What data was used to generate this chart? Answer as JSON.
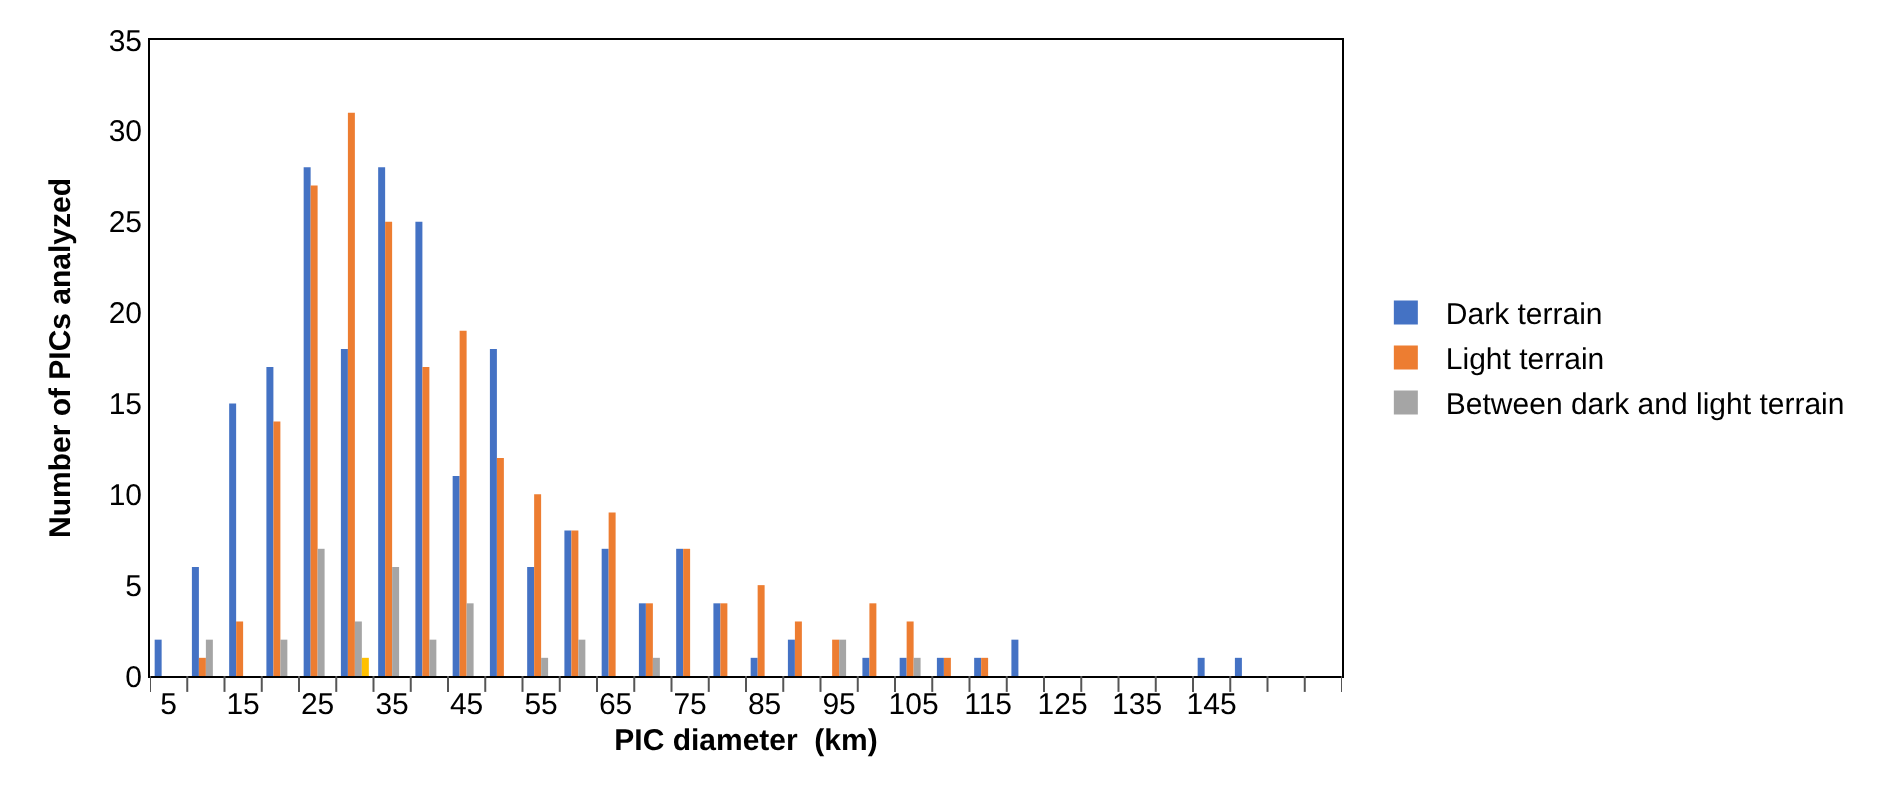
{
  "chart_data": {
    "type": "bar",
    "xlabel": "PIC diameter  (km)",
    "ylabel": "Number of PICs analyzed",
    "categories": [
      "5",
      null,
      "15",
      null,
      "25",
      null,
      "35",
      null,
      "45",
      null,
      "55",
      null,
      "65",
      null,
      "75",
      null,
      "85",
      null,
      "95",
      null,
      "105",
      null,
      "115",
      null,
      "125",
      null,
      "135",
      null,
      "145",
      null,
      null,
      null
    ],
    "series": [
      {
        "name": "Dark terrain",
        "color": "#4472c4",
        "values": [
          2,
          6,
          15,
          17,
          28,
          18,
          28,
          25,
          11,
          18,
          6,
          8,
          7,
          4,
          7,
          4,
          1,
          2,
          0,
          1,
          1,
          1,
          1,
          2,
          0,
          0,
          0,
          0,
          1,
          1,
          0,
          0
        ]
      },
      {
        "name": "Light terrain",
        "color": "#ed7d31",
        "values": [
          0,
          1,
          3,
          14,
          27,
          31,
          25,
          17,
          19,
          12,
          10,
          8,
          9,
          4,
          7,
          4,
          5,
          3,
          2,
          4,
          3,
          1,
          1,
          0,
          0,
          0,
          0,
          0,
          0,
          0,
          0,
          0
        ]
      },
      {
        "name": "Between dark and light terrain",
        "color": "#a5a5a5",
        "values": [
          0,
          2,
          0,
          2,
          7,
          3,
          6,
          2,
          4,
          0,
          1,
          2,
          0,
          1,
          0,
          0,
          0,
          0,
          2,
          0,
          1,
          0,
          0,
          0,
          0,
          0,
          0,
          0,
          0,
          0,
          0,
          0
        ]
      },
      {
        "color": "#ffc000",
        "values": [
          0,
          0,
          0,
          0,
          0,
          1,
          0,
          0,
          0,
          0,
          0,
          0,
          0,
          0,
          0,
          0,
          0,
          0,
          0,
          0,
          0,
          0,
          0,
          0,
          0,
          0,
          0,
          0,
          0,
          0,
          0,
          0
        ]
      }
    ],
    "ylim": [
      0,
      35
    ],
    "yticks": [
      0,
      5,
      10,
      15,
      20,
      25,
      30,
      35
    ],
    "grid": false,
    "legend": "right"
  }
}
